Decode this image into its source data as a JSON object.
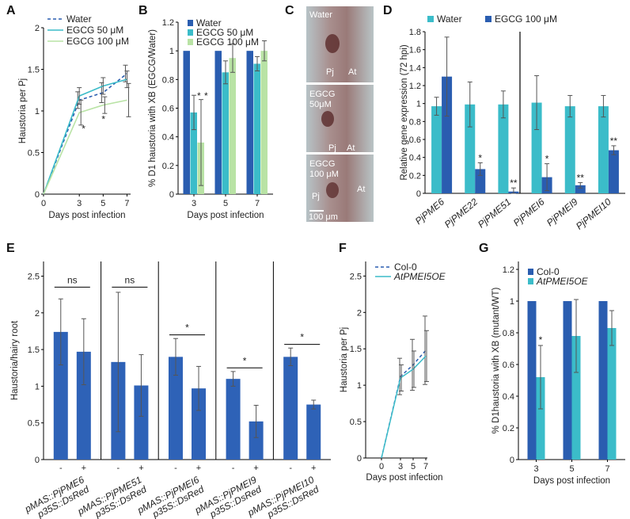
{
  "colors": {
    "water": "#2a5db0",
    "egcg50": "#3bbcc9",
    "egcg100": "#b9e3a5",
    "dark_blue": "#2a5db0",
    "light_blue": "#3bbcc9",
    "bar_main": "#2e62b7",
    "col0": "#2a5db0",
    "atpmei": "#3bbcc9"
  },
  "chart_data": [
    {
      "panel": "A",
      "type": "line",
      "xlabel": "Days post infection",
      "ylabel": "Haustoria per Pj",
      "x": [
        0,
        3,
        5,
        7
      ],
      "xticks": [
        "0",
        "3",
        "5",
        "7"
      ],
      "yticks": [
        "0",
        "0.5",
        "1",
        "1.5",
        "2"
      ],
      "ylim": [
        0,
        2
      ],
      "series": [
        {
          "name": "Water",
          "style": "dashed",
          "values": [
            0,
            1.13,
            1.22,
            1.45
          ],
          "err": [
            0,
            0.1,
            0.12,
            0.1
          ]
        },
        {
          "name": "EGCG 50 μM",
          "style": "solid",
          "values": [
            0,
            1.18,
            1.3,
            1.38
          ],
          "err": [
            0,
            0.1,
            0.1,
            0.1
          ]
        },
        {
          "name": "EGCG 100 μM",
          "style": "solid",
          "values": [
            0,
            0.98,
            1.07,
            1.13
          ],
          "err": [
            0,
            0.15,
            0.1,
            0.2
          ]
        }
      ],
      "annotations": [
        "*",
        "*"
      ]
    },
    {
      "panel": "B",
      "type": "bar",
      "xlabel": "Days post infection",
      "ylabel": "% D1 haustoria with XB (EGCG/Water)",
      "categories": [
        "3",
        "5",
        "7"
      ],
      "yticks": [
        "0",
        "0.2",
        "0.4",
        "0.6",
        "0.8",
        "1",
        "1.2"
      ],
      "ylim": [
        0,
        1.2
      ],
      "series": [
        {
          "name": "Water",
          "values": [
            1,
            1,
            1
          ],
          "err": [
            0,
            0,
            0
          ]
        },
        {
          "name": "EGCG 50 μM",
          "values": [
            0.57,
            0.85,
            0.91
          ],
          "err": [
            0.12,
            0.08,
            0.05
          ]
        },
        {
          "name": "EGCG 100 μM",
          "values": [
            0.36,
            0.95,
            1.0
          ],
          "err": [
            0.3,
            0.1,
            0.07
          ]
        }
      ],
      "annotations": [
        "*",
        "*"
      ]
    },
    {
      "panel": "D",
      "type": "bar",
      "ylabel": "Relative gene expression (72 hpi)",
      "categories": [
        "PjPME6",
        "PjPME22",
        "PjPME51",
        "PjPMEI6",
        "PjPMEI9",
        "PjPMEI10"
      ],
      "yticks": [
        "0",
        "0.2",
        "0.4",
        "0.6",
        "0.8",
        "1",
        "1.2",
        "1.4",
        "1.6",
        "1.8"
      ],
      "ylim": [
        0,
        1.8
      ],
      "series": [
        {
          "name": "Water",
          "values": [
            0.97,
            0.99,
            0.99,
            1.01,
            0.97,
            0.97
          ],
          "err": [
            0.1,
            0.25,
            0.15,
            0.3,
            0.12,
            0.12
          ]
        },
        {
          "name": "EGCG 100 μM",
          "values": [
            1.3,
            0.27,
            0.02,
            0.18,
            0.09,
            0.48
          ],
          "err": [
            0.44,
            0.07,
            0.04,
            0.15,
            0.03,
            0.05
          ]
        }
      ],
      "annotations": [
        "",
        "*",
        "**",
        "*",
        "**",
        "**"
      ]
    },
    {
      "panel": "E",
      "type": "bar",
      "ylabel": "Haustoria/hairy root",
      "categories": [
        "pMAS::PjPME6",
        "pMAS::PjPME51",
        "pMAS::PjPMEI6",
        "pMAS::PjPMEI9",
        "pMAS::PjPMEI10"
      ],
      "sublabel": "p35S::DsRed",
      "xticks": [
        "-",
        "+"
      ],
      "yticks": [
        "0",
        "0.5",
        "1",
        "1.5",
        "2",
        "2.5"
      ],
      "ylim": [
        0,
        2.7
      ],
      "minus": [
        1.74,
        1.33,
        1.4,
        1.1,
        1.4
      ],
      "minus_err": [
        0.45,
        0.95,
        0.25,
        0.1,
        0.12
      ],
      "plus": [
        1.47,
        1.01,
        0.97,
        0.52,
        0.75
      ],
      "plus_err": [
        0.45,
        0.42,
        0.3,
        0.22,
        0.06
      ],
      "annotations": [
        "ns",
        "ns",
        "*",
        "*",
        "*"
      ]
    },
    {
      "panel": "F",
      "type": "line",
      "xlabel": "Days post infection",
      "ylabel": "Haustoria per Pj",
      "x": [
        0,
        3,
        5,
        7
      ],
      "xticks": [
        "0",
        "3",
        "5",
        "7"
      ],
      "yticks": [
        "0",
        "0.5",
        "1",
        "1.5",
        "2",
        "2.5"
      ],
      "ylim": [
        0,
        2.7
      ],
      "series": [
        {
          "name": "Col-0",
          "style": "dashed",
          "values": [
            0,
            1.12,
            1.28,
            1.48
          ],
          "err": [
            0,
            0.25,
            0.35,
            0.47
          ]
        },
        {
          "name": "AtPMEI5OE",
          "style": "solid",
          "values": [
            0,
            1.1,
            1.22,
            1.4
          ],
          "err": [
            0,
            0.18,
            0.25,
            0.35
          ]
        }
      ]
    },
    {
      "panel": "G",
      "type": "bar",
      "xlabel": "Days post infection",
      "ylabel": "% D1haustoria with XB (mutant/WT)",
      "categories": [
        "3",
        "5",
        "7"
      ],
      "yticks": [
        "0",
        "0.2",
        "0.4",
        "0.6",
        "0.8",
        "1",
        "1.2"
      ],
      "ylim": [
        0,
        1.25
      ],
      "series": [
        {
          "name": "Col-0",
          "values": [
            1,
            1,
            1
          ],
          "err": [
            0,
            0,
            0
          ]
        },
        {
          "name": "AtPMEI5OE",
          "values": [
            0.52,
            0.78,
            0.83
          ],
          "err": [
            0.2,
            0.23,
            0.11
          ]
        }
      ],
      "annotations": [
        "*",
        "",
        ""
      ]
    }
  ],
  "micrograph": {
    "panel": "C",
    "panes": [
      {
        "label": "Water",
        "pj": "Pj",
        "at": "At"
      },
      {
        "label_line1": "EGCG",
        "label_line2": "50μM",
        "pj": "Pj",
        "at": "At"
      },
      {
        "label_line1": "EGCG",
        "label_line2": "100 μM",
        "pj": "Pj",
        "at": "At",
        "scale": "100 μm"
      }
    ]
  },
  "labels": {
    "A": "A",
    "B": "B",
    "C": "C",
    "D": "D",
    "E": "E",
    "F": "F",
    "G": "G"
  }
}
